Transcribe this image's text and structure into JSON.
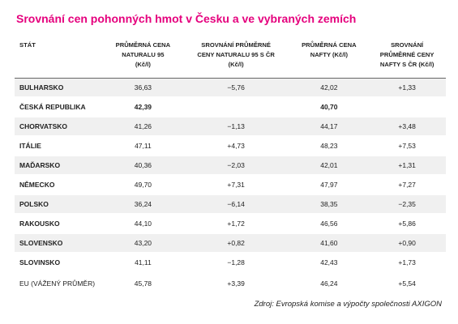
{
  "title": "Srovnání cen pohonných hmot v Česku a ve vybraných zemích",
  "table": {
    "header": [
      [
        "STÁT"
      ],
      [
        "PRŮMĚRNÁ CENA",
        "NATURALU 95",
        "(Kč/l)"
      ],
      [
        "SROVNÁNÍ PRŮMĚRNÉ",
        "CENY NATURALU 95 S ČR",
        "(Kč/l)"
      ],
      [
        "PRŮMĚRNÁ CENA",
        "NAFTY (Kč/l)"
      ],
      [
        "SROVNÁNÍ",
        "PRŮMĚRNÉ CENY",
        "NAFTY S ČR (Kč/l)"
      ]
    ],
    "rows": [
      [
        "BULHARSKO",
        "36,63",
        "−5,76",
        "42,02",
        "+1,33"
      ],
      [
        "ČESKÁ REPUBLIKA",
        "42,39",
        null,
        "40,70",
        null
      ],
      [
        "CHORVATSKO",
        "41,26",
        "−1,13",
        "44,17",
        "+3,48"
      ],
      [
        "ITÁLIE",
        "47,11",
        "+4,73",
        "48,23",
        "+7,53"
      ],
      [
        "MAĎARSKO",
        "40,36",
        "−2,03",
        "42,01",
        "+1,31"
      ],
      [
        "NĚMECKO",
        "49,70",
        "+7,31",
        "47,97",
        "+7,27"
      ],
      [
        "POLSKO",
        "36,24",
        "−6,14",
        "38,35",
        "−2,35"
      ],
      [
        "RAKOUSKO",
        "44,10",
        "+1,72",
        "46,56",
        "+5,86"
      ],
      [
        "SLOVENSKO",
        "43,20",
        "+0,82",
        "41,60",
        "+0,90"
      ],
      [
        "SLOVINSKO",
        "41,11",
        "−1,28",
        "42,43",
        "+1,73"
      ],
      [
        "EU (VÁŽENÝ PRŮMĚR)",
        "45,78",
        "+3,39",
        "46,24",
        "+5,54"
      ]
    ]
  },
  "source": "Zdroj: Evropská komise a výpočty společnosti AXIGON"
}
